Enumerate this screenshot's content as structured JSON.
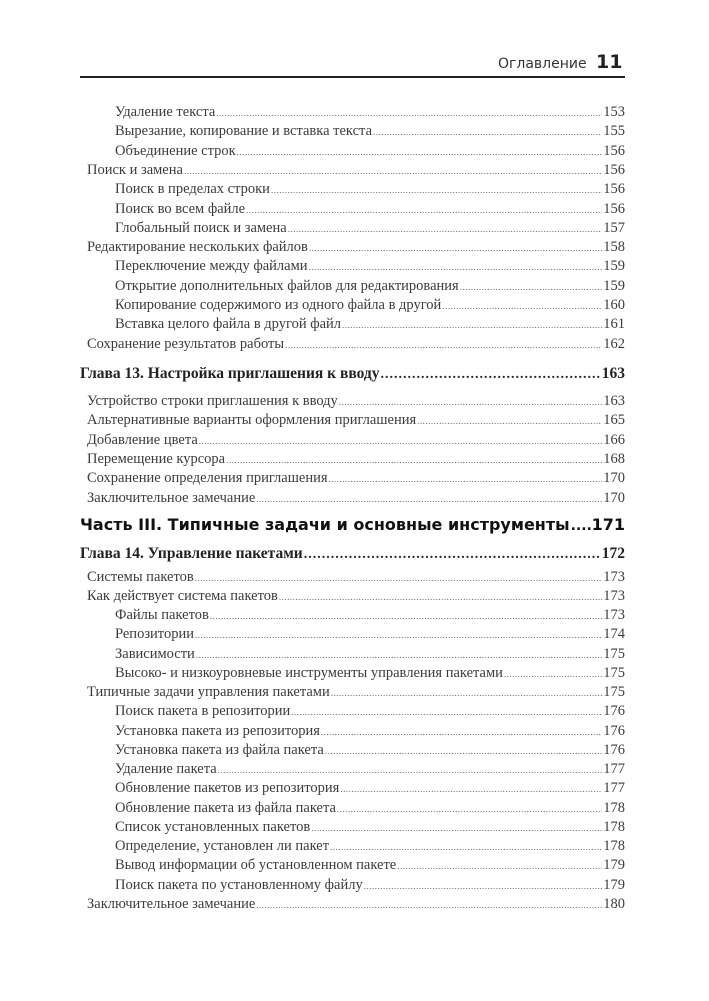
{
  "header": {
    "section_title": "Оглавление",
    "page_number": "11"
  },
  "entries": [
    {
      "level": 2,
      "title": "Удаление текста",
      "page": "153"
    },
    {
      "level": 2,
      "title": "Вырезание, копирование и вставка текста",
      "page": "155"
    },
    {
      "level": 2,
      "title": "Объединение строк",
      "page": "156"
    },
    {
      "level": 1,
      "title": "Поиск и замена",
      "page": "156"
    },
    {
      "level": 2,
      "title": "Поиск в пределах строки",
      "page": "156"
    },
    {
      "level": 2,
      "title": "Поиск во всем файле",
      "page": "156"
    },
    {
      "level": 2,
      "title": "Глобальный поиск и замена",
      "page": "157"
    },
    {
      "level": 1,
      "title": "Редактирование нескольких файлов",
      "page": "158"
    },
    {
      "level": 2,
      "title": "Переключение между файлами",
      "page": "159"
    },
    {
      "level": 2,
      "title": "Открытие дополнительных файлов для редактирования",
      "page": "159"
    },
    {
      "level": 2,
      "title": "Копирование содержимого из одного файла в другой",
      "page": "160"
    },
    {
      "level": 2,
      "title": "Вставка целого файла в другой файл",
      "page": "161"
    },
    {
      "level": 1,
      "title": "Сохранение результатов работы",
      "page": "162"
    },
    {
      "level": "chapter",
      "title": "Глава 13. Настройка приглашения к вводу",
      "page": "163"
    },
    {
      "level": 1,
      "title": "Устройство строки приглашения к вводу",
      "page": "163"
    },
    {
      "level": 1,
      "title": "Альтернативные варианты оформления приглашения",
      "page": "165"
    },
    {
      "level": 1,
      "title": "Добавление цвета",
      "page": "166"
    },
    {
      "level": 1,
      "title": "Перемещение курсора",
      "page": "168"
    },
    {
      "level": 1,
      "title": "Сохранение определения приглашения",
      "page": "170"
    },
    {
      "level": 1,
      "title": "Заключительное замечание",
      "page": "170"
    },
    {
      "level": "part",
      "title": "Часть III. Типичные задачи и основные инструменты",
      "page": "171"
    },
    {
      "level": "chapter",
      "title": "Глава 14. Управление пакетами",
      "page": "172"
    },
    {
      "level": 1,
      "title": "Системы пакетов",
      "page": "173"
    },
    {
      "level": 1,
      "title": "Как действует система пакетов",
      "page": "173"
    },
    {
      "level": 2,
      "title": "Файлы пакетов",
      "page": "173"
    },
    {
      "level": 2,
      "title": "Репозитории",
      "page": "174"
    },
    {
      "level": 2,
      "title": "Зависимости",
      "page": "175"
    },
    {
      "level": 2,
      "title": "Высоко- и низкоуровневые инструменты управления пакетами",
      "page": "175"
    },
    {
      "level": 1,
      "title": "Типичные задачи управления пакетами",
      "page": "175"
    },
    {
      "level": 2,
      "title": "Поиск пакета в репозитории",
      "page": "176"
    },
    {
      "level": 2,
      "title": "Установка пакета из репозитория",
      "page": "176"
    },
    {
      "level": 2,
      "title": "Установка пакета из файла пакета",
      "page": "176"
    },
    {
      "level": 2,
      "title": "Удаление пакета",
      "page": "177"
    },
    {
      "level": 2,
      "title": "Обновление пакетов из репозитория",
      "page": "177"
    },
    {
      "level": 2,
      "title": "Обновление пакета из файла пакета",
      "page": "178"
    },
    {
      "level": 2,
      "title": "Список установленных пакетов",
      "page": "178"
    },
    {
      "level": 2,
      "title": "Определение, установлен ли пакет",
      "page": "178"
    },
    {
      "level": 2,
      "title": "Вывод информации об установленном пакете",
      "page": "179"
    },
    {
      "level": 2,
      "title": "Поиск пакета по установленному файлу",
      "page": "179"
    },
    {
      "level": 1,
      "title": "Заключительное замечание",
      "page": "180"
    }
  ]
}
